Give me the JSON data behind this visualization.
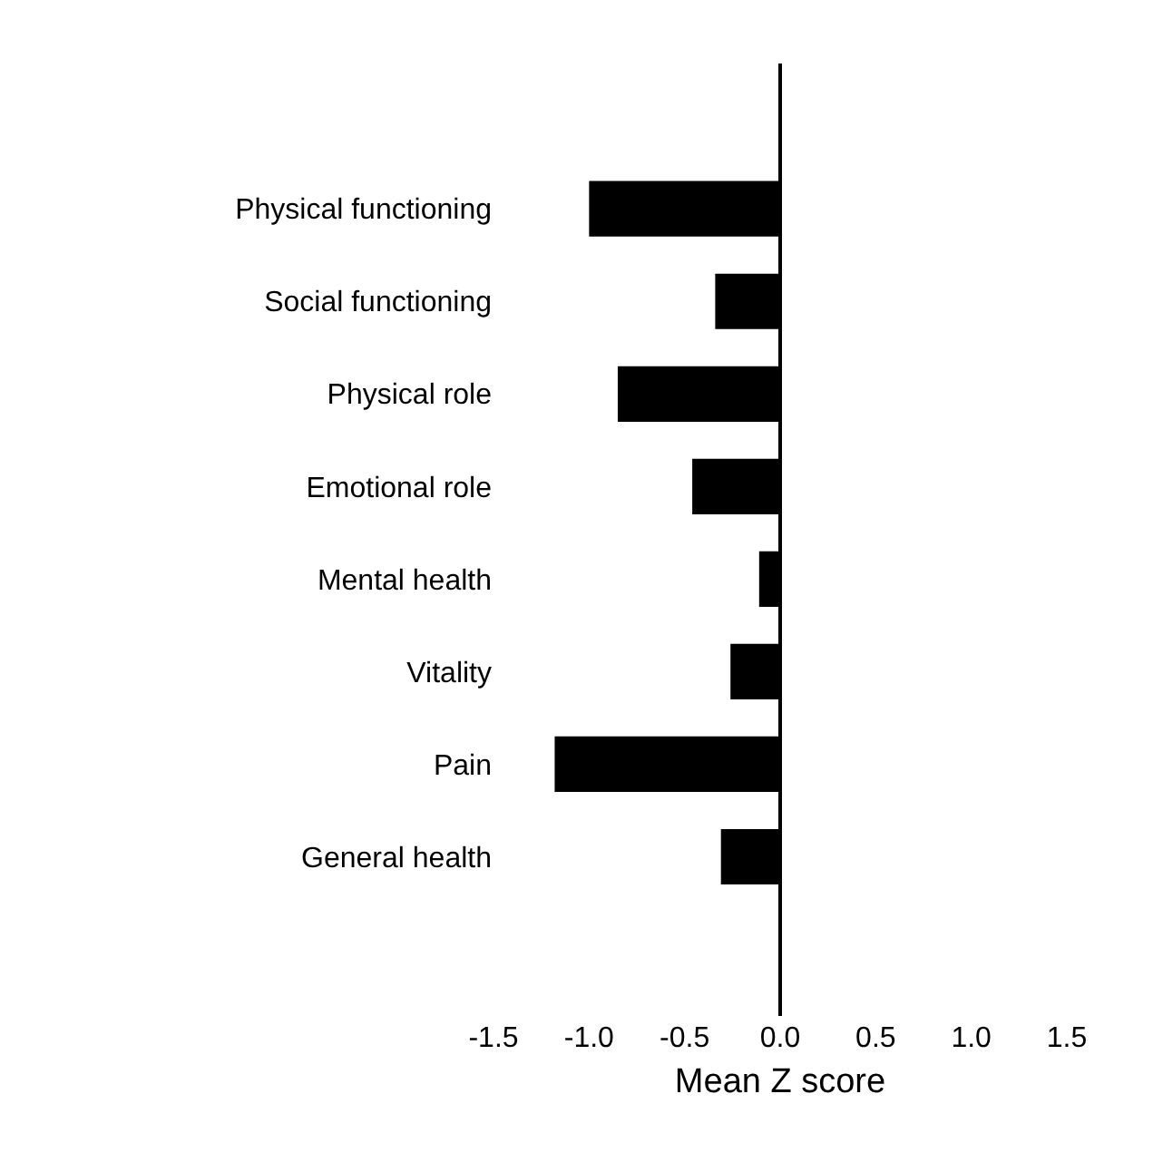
{
  "chart_data": {
    "type": "bar",
    "orientation": "horizontal",
    "xlabel": "Mean Z score",
    "categories": [
      "Physical functioning",
      "Social functioning",
      "Physical role",
      "Emotional role",
      "Mental health",
      "Vitality",
      "Pain",
      "General health"
    ],
    "values": [
      -1.0,
      -0.34,
      -0.85,
      -0.46,
      -0.11,
      -0.26,
      -1.18,
      -0.31
    ],
    "color": "#000000",
    "xlim": [
      -1.5,
      1.5
    ],
    "ref_lines": [
      {
        "axis": "x",
        "value": 0,
        "color": "#000000"
      }
    ],
    "xticks": [
      {
        "value": -1.5,
        "label": "-1.5"
      },
      {
        "value": -1,
        "label": "-1.0"
      },
      {
        "value": -0.5,
        "label": "-0.5"
      },
      {
        "value": 0,
        "label": "0.0"
      },
      {
        "value": 0.5,
        "label": "0.5"
      },
      {
        "value": 1,
        "label": "1.0"
      },
      {
        "value": 1.5,
        "label": "1.5"
      }
    ],
    "grid": false,
    "legend": false
  }
}
